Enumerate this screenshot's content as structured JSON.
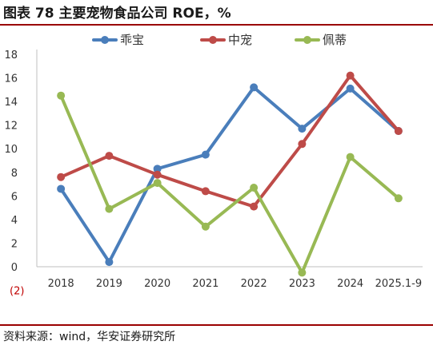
{
  "figure": {
    "title": "图表 78  主要宠物食品公司 ROE，%",
    "source": "资料来源：wind，华安证券研究所"
  },
  "colors": {
    "rule": "#9a0000",
    "axis": "#bfbfbf",
    "negative_tick": "#c00000"
  },
  "chart_data": {
    "type": "line",
    "categories": [
      "2018",
      "2019",
      "2020",
      "2021",
      "2022",
      "2023",
      "2024",
      "2025.1-9"
    ],
    "series": [
      {
        "name": "乖宝",
        "color": "#4a7ebb",
        "values": [
          6.6,
          0.4,
          8.3,
          9.5,
          15.2,
          11.7,
          15.1,
          11.5
        ]
      },
      {
        "name": "中宠",
        "color": "#be4b48",
        "values": [
          7.6,
          9.4,
          7.8,
          6.4,
          5.1,
          10.4,
          16.2,
          11.5
        ]
      },
      {
        "name": "佩蒂",
        "color": "#98b954",
        "values": [
          14.5,
          4.9,
          7.1,
          3.4,
          6.7,
          -0.5,
          9.3,
          5.8
        ]
      }
    ],
    "y_ticks": [
      "18",
      "16",
      "14",
      "12",
      "10",
      "8",
      "6",
      "4",
      "2",
      "0",
      "(2)"
    ],
    "ylim": [
      -2,
      18
    ],
    "legend_position": "top",
    "grid": false,
    "xlabel": "",
    "ylabel": ""
  }
}
